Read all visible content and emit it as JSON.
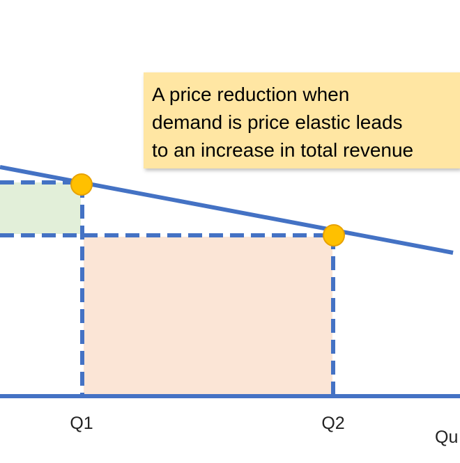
{
  "diagram": {
    "callout_lines": [
      "A price reduction when",
      "demand is price elastic leads",
      "to an increase in total revenue"
    ],
    "ticks": {
      "q1": "Q1",
      "q2": "Q2"
    },
    "axis_label_partial": "Qu",
    "colors": {
      "line": "#4472c4",
      "point": "#ffc000",
      "point_outline": "#e8a200",
      "gain_area": "#e2efd9",
      "total_area": "#fbe5d6",
      "callout_bg": "#ffe6a3"
    }
  }
}
